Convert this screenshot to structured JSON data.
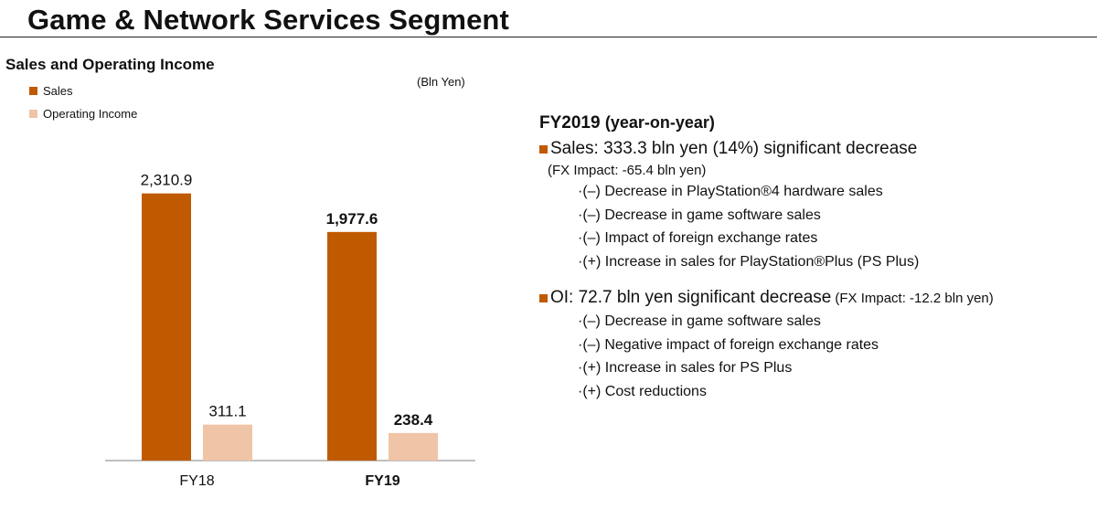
{
  "page": {
    "title": "Game & Network Services Segment"
  },
  "chart_data": {
    "type": "bar",
    "title": "Sales and Operating Income",
    "unit": "(Bln Yen)",
    "categories": [
      "FY18",
      "FY19"
    ],
    "series": [
      {
        "name": "Sales",
        "color": "#c05a00",
        "values": [
          2310.9,
          1977.6
        ],
        "labels": [
          "2,310.9",
          "1,977.6"
        ]
      },
      {
        "name": "Operating Income",
        "color": "#f0c4a6",
        "values": [
          311.1,
          238.4
        ],
        "labels": [
          "311.1",
          "238.4"
        ]
      }
    ],
    "bold_category_index": 1,
    "legend_position": "top-left",
    "grid": false,
    "ylim": [
      0,
      2500
    ]
  },
  "commentary": {
    "heading": "FY2019",
    "heading_sub": "(year-on-year)",
    "accent_color": "#c05a00",
    "sales": {
      "headline": "Sales: 333.3 bln yen (14%) significant decrease",
      "fx": "(FX Impact: -65.4 bln yen)",
      "items": [
        "·(–) Decrease in PlayStation®4 hardware sales",
        "·(–) Decrease in game software sales",
        "·(–) Impact of foreign exchange rates",
        "·(+) Increase in sales for PlayStation®Plus (PS Plus)"
      ]
    },
    "oi": {
      "headline": "OI: 72.7 bln yen significant decrease",
      "fx": "(FX Impact: -12.2 bln yen)",
      "items": [
        "·(–) Decrease in game software sales",
        "·(–) Negative impact of foreign exchange rates",
        "·(+) Increase in sales for PS Plus",
        "·(+) Cost reductions"
      ]
    }
  }
}
